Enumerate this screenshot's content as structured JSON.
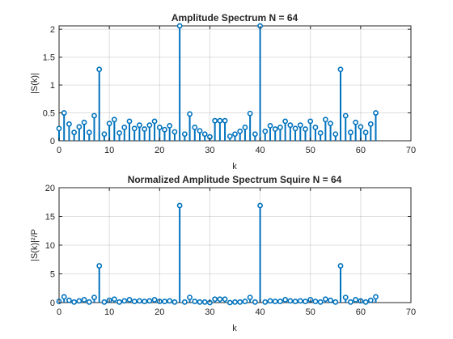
{
  "chart_data": [
    {
      "type": "stem",
      "title": "Amplitude Spectrum N = 64",
      "xlabel": "k",
      "ylabel": "|S(k)|",
      "xlim": [
        0,
        70
      ],
      "ylim": [
        0,
        2.06
      ],
      "xticks": [
        "0",
        "10",
        "20",
        "30",
        "40",
        "50",
        "60",
        "70"
      ],
      "yticks": [
        "0",
        "0.5",
        "1",
        "1.5",
        "2"
      ],
      "xtick_values": [
        0,
        10,
        20,
        30,
        40,
        50,
        60,
        70
      ],
      "ytick_values": [
        0,
        0.5,
        1,
        1.5,
        2
      ],
      "grid": true,
      "color": "#0072BD",
      "x": [
        0,
        1,
        2,
        3,
        4,
        5,
        6,
        7,
        8,
        9,
        10,
        11,
        12,
        13,
        14,
        15,
        16,
        17,
        18,
        19,
        20,
        21,
        22,
        23,
        24,
        25,
        26,
        27,
        28,
        29,
        30,
        31,
        32,
        33,
        34,
        35,
        36,
        37,
        38,
        39,
        40,
        41,
        42,
        43,
        44,
        45,
        46,
        47,
        48,
        49,
        50,
        51,
        52,
        53,
        54,
        55,
        56,
        57,
        58,
        59,
        60,
        61,
        62,
        63
      ],
      "values": [
        0.22,
        0.5,
        0.3,
        0.15,
        0.25,
        0.33,
        0.15,
        0.45,
        1.28,
        0.12,
        0.31,
        0.38,
        0.14,
        0.24,
        0.35,
        0.22,
        0.28,
        0.21,
        0.28,
        0.35,
        0.24,
        0.2,
        0.27,
        0.16,
        2.07,
        0.12,
        0.48,
        0.24,
        0.18,
        0.12,
        0.07,
        0.36,
        0.36,
        0.36,
        0.08,
        0.12,
        0.17,
        0.24,
        0.49,
        0.12,
        2.07,
        0.17,
        0.27,
        0.21,
        0.24,
        0.35,
        0.28,
        0.22,
        0.28,
        0.21,
        0.35,
        0.24,
        0.14,
        0.38,
        0.31,
        0.12,
        1.28,
        0.45,
        0.15,
        0.33,
        0.25,
        0.15,
        0.3,
        0.5
      ]
    },
    {
      "type": "stem",
      "title": "Normalized Amplitude Spectrum Squire N = 64",
      "xlabel": "k",
      "ylabel": "|S(k)|²/P",
      "xlim": [
        0,
        70
      ],
      "ylim": [
        0,
        20
      ],
      "xticks": [
        "0",
        "10",
        "20",
        "30",
        "40",
        "50",
        "60",
        "70"
      ],
      "yticks": [
        "0",
        "5",
        "10",
        "15",
        "20"
      ],
      "xtick_values": [
        0,
        10,
        20,
        30,
        40,
        50,
        60,
        70
      ],
      "ytick_values": [
        0,
        5,
        10,
        15,
        20
      ],
      "grid": true,
      "color": "#0072BD",
      "x": [
        0,
        1,
        2,
        3,
        4,
        5,
        6,
        7,
        8,
        9,
        10,
        11,
        12,
        13,
        14,
        15,
        16,
        17,
        18,
        19,
        20,
        21,
        22,
        23,
        24,
        25,
        26,
        27,
        28,
        29,
        30,
        31,
        32,
        33,
        34,
        35,
        36,
        37,
        38,
        39,
        40,
        41,
        42,
        43,
        44,
        45,
        46,
        47,
        48,
        49,
        50,
        51,
        52,
        53,
        54,
        55,
        56,
        57,
        58,
        59,
        60,
        61,
        62,
        63
      ],
      "values": [
        0.2,
        1.0,
        0.4,
        0.1,
        0.3,
        0.5,
        0.1,
        0.9,
        6.4,
        0.1,
        0.4,
        0.6,
        0.1,
        0.3,
        0.5,
        0.2,
        0.3,
        0.2,
        0.3,
        0.5,
        0.2,
        0.2,
        0.3,
        0.1,
        16.9,
        0.1,
        0.9,
        0.2,
        0.1,
        0.1,
        0.0,
        0.6,
        0.6,
        0.6,
        0.0,
        0.1,
        0.1,
        0.2,
        0.9,
        0.1,
        16.9,
        0.1,
        0.3,
        0.2,
        0.2,
        0.5,
        0.3,
        0.2,
        0.3,
        0.2,
        0.5,
        0.2,
        0.1,
        0.6,
        0.4,
        0.1,
        6.4,
        0.9,
        0.1,
        0.5,
        0.3,
        0.1,
        0.4,
        1.0
      ]
    }
  ]
}
